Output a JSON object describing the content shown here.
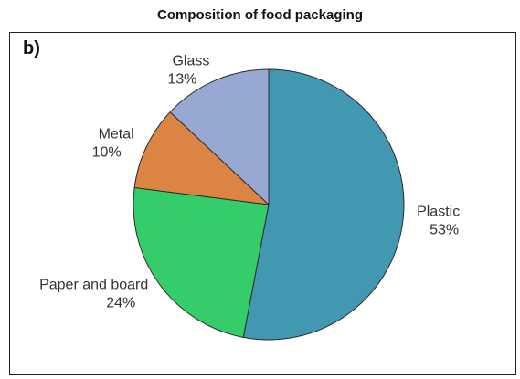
{
  "chart_data": {
    "type": "pie",
    "title": "Composition of food packaging",
    "panel_label": "b)",
    "slices": [
      {
        "label": "Plastic",
        "value": 53,
        "display": "53%",
        "color": "#4398b1"
      },
      {
        "label": "Paper and board",
        "value": 24,
        "display": "24%",
        "color": "#35cc6a"
      },
      {
        "label": "Metal",
        "value": 10,
        "display": "10%",
        "color": "#db8443"
      },
      {
        "label": "Glass",
        "value": 13,
        "display": "13%",
        "color": "#97a9d3"
      }
    ],
    "start_angle": "top",
    "direction": "clockwise",
    "legend": "none"
  }
}
